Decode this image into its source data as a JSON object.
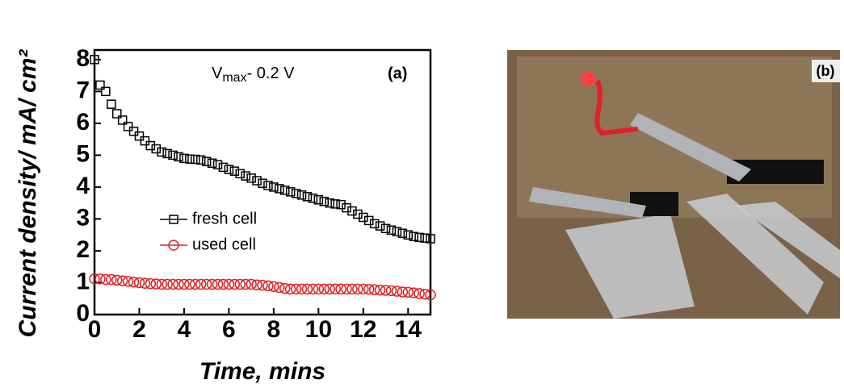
{
  "chart_data": {
    "type": "scatter",
    "xlabel": "Time, mins",
    "ylabel": "Current density/ mA/ cm²",
    "panel_label": "(a)",
    "annotation": [
      "V",
      "max",
      "- 0.2 V"
    ],
    "xlim": [
      0,
      15
    ],
    "ylim": [
      0,
      8.3
    ],
    "xticks": [
      0,
      2,
      4,
      6,
      8,
      10,
      12,
      14
    ],
    "yticks": [
      0,
      1,
      2,
      3,
      4,
      5,
      6,
      7,
      8
    ],
    "x": [
      0,
      0.25,
      0.5,
      0.75,
      1,
      1.25,
      1.5,
      1.75,
      2,
      2.25,
      2.5,
      2.75,
      3,
      3.25,
      3.5,
      3.75,
      4,
      4.25,
      4.5,
      4.75,
      5,
      5.25,
      5.5,
      5.75,
      6,
      6.25,
      6.5,
      6.75,
      7,
      7.25,
      7.5,
      7.75,
      8,
      8.25,
      8.5,
      8.75,
      9,
      9.25,
      9.5,
      9.75,
      10,
      10.25,
      10.5,
      10.75,
      11,
      11.25,
      11.5,
      11.75,
      12,
      12.25,
      12.5,
      12.75,
      13,
      13.25,
      13.5,
      13.75,
      14,
      14.25,
      14.5,
      14.75,
      15
    ],
    "series": [
      {
        "name": "fresh cell",
        "color": "#000000",
        "marker": "square",
        "values": [
          8.0,
          7.2,
          7.0,
          6.6,
          6.3,
          6.1,
          5.9,
          5.75,
          5.6,
          5.45,
          5.3,
          5.2,
          5.1,
          5.05,
          5.0,
          4.95,
          4.9,
          4.88,
          4.87,
          4.85,
          4.8,
          4.75,
          4.7,
          4.62,
          4.55,
          4.5,
          4.42,
          4.35,
          4.28,
          4.2,
          4.12,
          4.05,
          4.0,
          3.95,
          3.9,
          3.85,
          3.8,
          3.75,
          3.7,
          3.65,
          3.6,
          3.55,
          3.5,
          3.47,
          3.45,
          3.35,
          3.25,
          3.15,
          3.05,
          2.95,
          2.85,
          2.78,
          2.7,
          2.65,
          2.6,
          2.55,
          2.5,
          2.45,
          2.42,
          2.4,
          2.38
        ]
      },
      {
        "name": "used cell",
        "color": "#e02020",
        "marker": "circle",
        "values": [
          1.12,
          1.12,
          1.1,
          1.1,
          1.08,
          1.06,
          1.04,
          1.02,
          1.0,
          0.98,
          0.97,
          0.96,
          0.95,
          0.95,
          0.95,
          0.95,
          0.95,
          0.95,
          0.95,
          0.95,
          0.95,
          0.95,
          0.95,
          0.95,
          0.95,
          0.95,
          0.95,
          0.95,
          0.95,
          0.93,
          0.92,
          0.9,
          0.88,
          0.85,
          0.82,
          0.8,
          0.8,
          0.8,
          0.8,
          0.8,
          0.8,
          0.8,
          0.8,
          0.8,
          0.8,
          0.8,
          0.8,
          0.8,
          0.8,
          0.79,
          0.78,
          0.77,
          0.76,
          0.75,
          0.73,
          0.71,
          0.7,
          0.68,
          0.66,
          0.64,
          0.62
        ]
      }
    ]
  },
  "photo": {
    "label": "(b)"
  }
}
